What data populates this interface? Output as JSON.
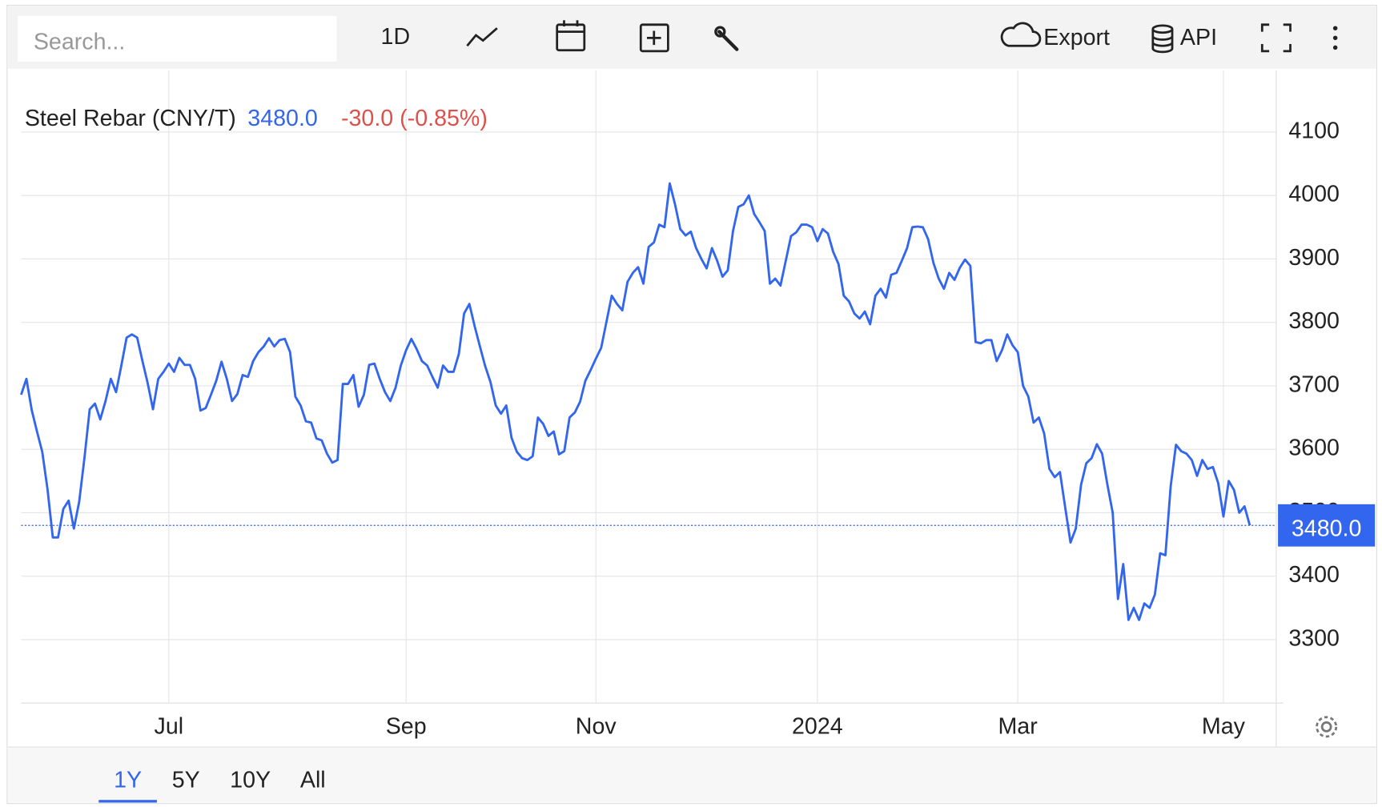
{
  "toolbar": {
    "search_placeholder": "Search...",
    "interval": "1D",
    "export": "Export",
    "api": "API"
  },
  "ranges": [
    "1Y",
    "5Y",
    "10Y",
    "All"
  ],
  "chart_data": {
    "type": "line",
    "title": "Steel Rebar (CNY/T)",
    "price_label": "3480.0",
    "change_label": "-30.0 (-0.85%)",
    "categories": [
      null,
      null,
      null,
      null,
      null,
      null,
      null,
      null,
      null,
      null,
      null,
      null,
      null,
      null,
      null,
      null,
      null,
      null,
      null,
      null,
      null,
      null,
      null,
      null,
      null,
      null,
      null,
      null,
      "Jul",
      null,
      null,
      null,
      null,
      null,
      null,
      null,
      null,
      null,
      null,
      null,
      null,
      null,
      null,
      null,
      null,
      null,
      null,
      null,
      null,
      null,
      null,
      null,
      null,
      null,
      null,
      null,
      null,
      null,
      null,
      null,
      null,
      null,
      null,
      null,
      null,
      null,
      null,
      null,
      null,
      null,
      null,
      null,
      null,
      "Sep",
      null,
      null,
      null,
      null,
      null,
      null,
      null,
      null,
      null,
      null,
      null,
      null,
      null,
      null,
      null,
      null,
      null,
      null,
      null,
      null,
      null,
      null,
      null,
      null,
      null,
      null,
      null,
      null,
      null,
      null,
      null,
      null,
      null,
      null,
      null,
      "Nov",
      null,
      null,
      null,
      null,
      null,
      null,
      null,
      null,
      null,
      null,
      null,
      null,
      null,
      null,
      null,
      null,
      null,
      null,
      null,
      null,
      null,
      null,
      null,
      null,
      null,
      null,
      null,
      null,
      null,
      null,
      null,
      null,
      null,
      null,
      null,
      null,
      null,
      null,
      null,
      null,
      null,
      "2024",
      null,
      null,
      null,
      null,
      null,
      null,
      null,
      null,
      null,
      null,
      null,
      null,
      null,
      null,
      null,
      null,
      null,
      null,
      null,
      null,
      null,
      null,
      null,
      null,
      null,
      null,
      null,
      null,
      null,
      null,
      null,
      null,
      null,
      null,
      null,
      null,
      null,
      "Mar",
      null,
      null,
      null,
      null,
      null,
      null,
      null,
      null,
      null,
      null,
      null,
      null,
      null,
      null,
      null,
      null,
      null,
      null,
      null,
      null,
      null,
      null,
      null,
      null,
      null,
      null,
      null,
      null,
      null,
      null,
      null,
      null,
      null,
      null,
      null,
      null,
      null,
      null,
      "May",
      null,
      null,
      null,
      null,
      null
    ],
    "series": [
      {
        "name": "Steel Rebar",
        "color": "#3366ee",
        "values": [
          3686,
          3711,
          3662,
          3628,
          3596,
          3537,
          3461,
          3461,
          3506,
          3519,
          3475,
          3517,
          3586,
          3663,
          3672,
          3647,
          3676,
          3711,
          3690,
          3732,
          3776,
          3781,
          3776,
          3739,
          3704,
          3663,
          3711,
          3722,
          3735,
          3722,
          3744,
          3733,
          3733,
          3711,
          3661,
          3665,
          3686,
          3708,
          3738,
          3711,
          3676,
          3687,
          3717,
          3714,
          3739,
          3753,
          3762,
          3775,
          3762,
          3772,
          3774,
          3753,
          3683,
          3669,
          3644,
          3642,
          3617,
          3614,
          3593,
          3579,
          3583,
          3703,
          3703,
          3717,
          3667,
          3686,
          3733,
          3735,
          3711,
          3690,
          3676,
          3697,
          3732,
          3756,
          3774,
          3758,
          3739,
          3732,
          3714,
          3697,
          3732,
          3722,
          3722,
          3750,
          3814,
          3829,
          3794,
          3762,
          3731,
          3706,
          3669,
          3656,
          3669,
          3618,
          3596,
          3586,
          3583,
          3589,
          3650,
          3640,
          3621,
          3628,
          3592,
          3597,
          3650,
          3658,
          3675,
          3708,
          3725,
          3743,
          3760,
          3801,
          3842,
          3829,
          3819,
          3864,
          3878,
          3887,
          3861,
          3919,
          3926,
          3954,
          3950,
          4019,
          3986,
          3947,
          3937,
          3943,
          3917,
          3900,
          3885,
          3917,
          3897,
          3872,
          3882,
          3944,
          3982,
          3986,
          4000,
          3971,
          3958,
          3944,
          3861,
          3869,
          3858,
          3897,
          3936,
          3942,
          3954,
          3954,
          3950,
          3928,
          3947,
          3940,
          3911,
          3892,
          3842,
          3833,
          3814,
          3806,
          3817,
          3797,
          3842,
          3853,
          3839,
          3875,
          3878,
          3897,
          3917,
          3950,
          3951,
          3950,
          3931,
          3894,
          3869,
          3853,
          3878,
          3867,
          3886,
          3899,
          3889,
          3769,
          3767,
          3772,
          3772,
          3739,
          3756,
          3781,
          3764,
          3753,
          3700,
          3683,
          3642,
          3650,
          3625,
          3569,
          3556,
          3564,
          3508,
          3453,
          3475,
          3544,
          3578,
          3586,
          3608,
          3593,
          3544,
          3500,
          3364,
          3419,
          3331,
          3350,
          3331,
          3357,
          3350,
          3371,
          3436,
          3433,
          3542,
          3607,
          3597,
          3593,
          3583,
          3558,
          3583,
          3569,
          3572,
          3547,
          3494,
          3550,
          3536,
          3500,
          3510,
          3480
        ]
      }
    ],
    "ylim": [
      3200,
      4197
    ],
    "yticks": [
      3300,
      3400,
      3500,
      3600,
      3700,
      3800,
      3900,
      4000,
      4100
    ],
    "grid": true
  }
}
